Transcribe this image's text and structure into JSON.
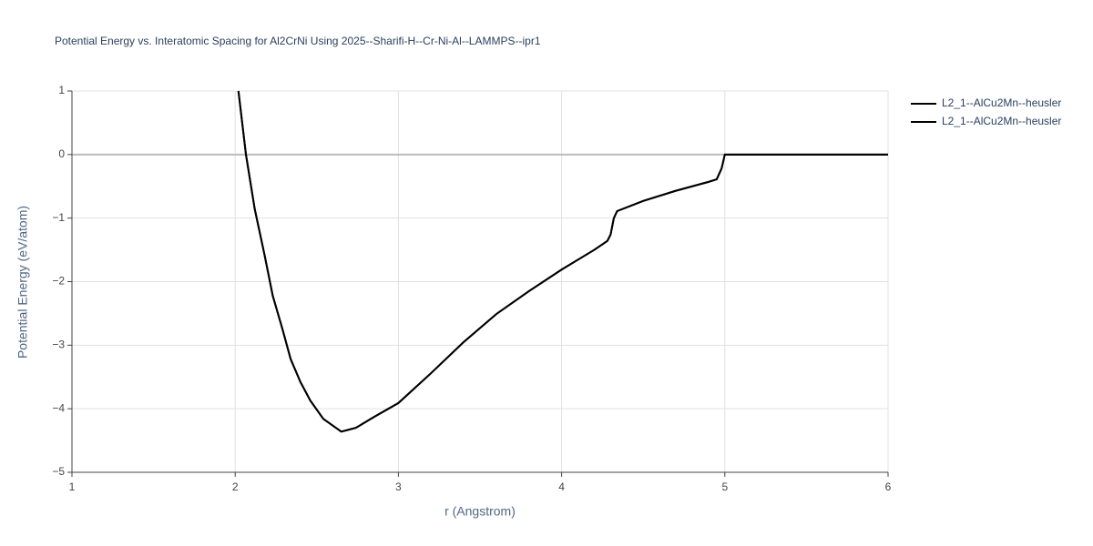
{
  "chart_data": {
    "type": "line",
    "title": "Potential Energy vs. Interatomic Spacing for Al2CrNi Using 2025--Sharifi-H--Cr-Ni-Al--LAMMPS--ipr1",
    "x_label": "r (Angstrom)",
    "y_label": "Potential Energy (eV/atom)",
    "xlim": [
      1,
      6
    ],
    "ylim": [
      -5,
      1
    ],
    "xticks": [
      1,
      2,
      3,
      4,
      5,
      6
    ],
    "yticks": [
      {
        "value": -5,
        "label": "−5"
      },
      {
        "value": -4,
        "label": "−4"
      },
      {
        "value": -3,
        "label": "−3"
      },
      {
        "value": -2,
        "label": "−2"
      },
      {
        "value": -1,
        "label": "−1"
      },
      0,
      1
    ],
    "grid": true,
    "legend": "right",
    "series": [
      {
        "name": "L2_1--AlCu2Mn--heusler",
        "color": "#000000",
        "x": [
          2.02,
          2.066,
          2.12,
          2.18,
          2.23,
          2.29,
          2.34,
          2.4,
          2.46,
          2.54,
          2.65,
          2.74,
          2.85,
          3.0,
          3.2,
          3.4,
          3.6,
          3.8,
          4.0,
          4.2,
          4.28,
          4.3,
          4.32,
          4.34,
          4.5,
          4.7,
          4.9,
          4.95,
          4.98,
          5.0,
          6.0
        ],
        "values": [
          1.0,
          0,
          -0.86,
          -1.58,
          -2.22,
          -2.75,
          -3.22,
          -3.58,
          -3.87,
          -4.16,
          -4.36,
          -4.3,
          -4.13,
          -3.91,
          -3.44,
          -2.95,
          -2.51,
          -2.15,
          -1.81,
          -1.5,
          -1.36,
          -1.26,
          -1.0,
          -0.89,
          -0.73,
          -0.57,
          -0.43,
          -0.39,
          -0.22,
          0,
          0
        ]
      },
      {
        "name": "L2_1--AlCu2Mn--heusler",
        "color": "#000000",
        "x": [
          2.02,
          2.066,
          2.12,
          2.18,
          2.23,
          2.29,
          2.34,
          2.4,
          2.46,
          2.54,
          2.65,
          2.74,
          2.85,
          3.0,
          3.2,
          3.4,
          3.6,
          3.8,
          4.0,
          4.2,
          4.28,
          4.3,
          4.32,
          4.34,
          4.5,
          4.7,
          4.9,
          4.95,
          4.98,
          5.0,
          6.0
        ],
        "values": [
          1.0,
          0,
          -0.86,
          -1.58,
          -2.22,
          -2.75,
          -3.22,
          -3.58,
          -3.87,
          -4.16,
          -4.36,
          -4.3,
          -4.13,
          -3.91,
          -3.44,
          -2.95,
          -2.51,
          -2.15,
          -1.81,
          -1.5,
          -1.36,
          -1.26,
          -1.0,
          -0.89,
          -0.73,
          -0.57,
          -0.43,
          -0.39,
          -0.22,
          0,
          0
        ]
      }
    ]
  }
}
